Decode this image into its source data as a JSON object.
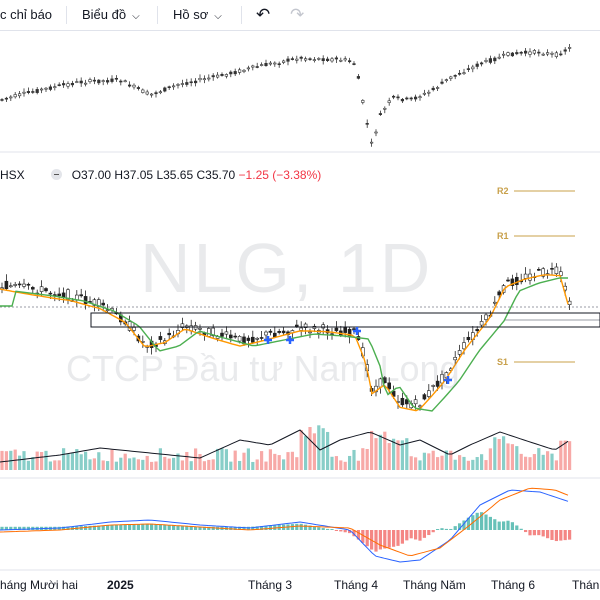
{
  "toolbar": {
    "indicators_label": "c chỉ báo",
    "chart_type_label": "Biểu đồ",
    "profile_label": "Hồ sơ",
    "undo_icon": "undo-icon",
    "redo_icon": "redo-icon"
  },
  "symbol": {
    "exchange_fragment": "HSX",
    "open": "O37.00",
    "high": "H37.05",
    "low": "L35.65",
    "close": "C35.70",
    "change": "−1.25 (−3.38%)",
    "change_color": "#f23645"
  },
  "watermark": {
    "ticker": "NLG, 1D",
    "company": "CTCP Đầu tư Nam Long"
  },
  "pivots": [
    "R2",
    "R1",
    "S1"
  ],
  "x_axis": [
    "háng Mười hai",
    "2025",
    "Tháng 3",
    "Tháng 4",
    "Tháng Năm",
    "Tháng 6",
    "Thán"
  ],
  "colors": {
    "up": "#26a69a",
    "down": "#ef5350",
    "ma_fast": "#ff9800",
    "ma_slow": "#4caf50",
    "pivot": "#c8a04a",
    "macd_line": "#2962ff",
    "signal_line": "#ff6d00"
  }
}
